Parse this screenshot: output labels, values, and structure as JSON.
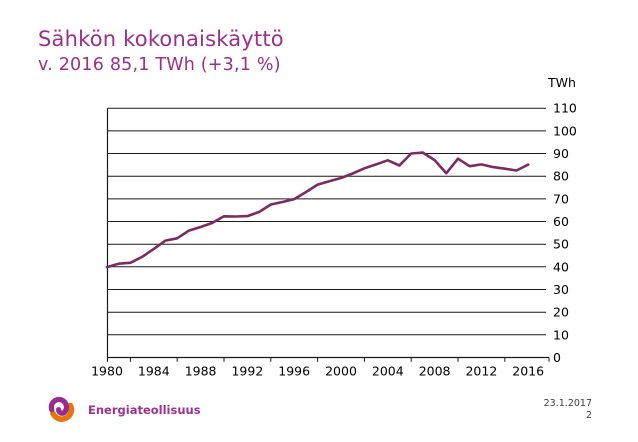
{
  "slide": {
    "title": "Sähkön kokonaiskäyttö",
    "subtitle": "v. 2016 85,1 TWh (+3,1 %)",
    "footer": {
      "logo_text": "Energiateollisuus",
      "date": "23.1.2017",
      "page": "2"
    }
  },
  "colors": {
    "title_text": "#9C3088",
    "line": "#7C2B62",
    "axis": "#1a1a1a",
    "gridline": "#1a1a1a",
    "logo_purple": "#9A2C90",
    "logo_orange": "#E8740C",
    "footer_text": "#404040"
  },
  "icons": {
    "logo": "energiateollisuus-swirl-icon"
  },
  "chart_data": {
    "type": "line",
    "title": "Sähkön kokonaiskäyttö",
    "unit_label": "TWh",
    "legend": "none",
    "grid": "horizontal",
    "y_axis_side": "right",
    "ylim": [
      0,
      110
    ],
    "y_ticks": [
      0,
      10,
      20,
      30,
      40,
      50,
      60,
      70,
      80,
      90,
      100,
      110
    ],
    "x_tick_labels": [
      "1980",
      "1984",
      "1988",
      "1992",
      "1996",
      "2000",
      "2004",
      "2008",
      "2012",
      "2016"
    ],
    "x": [
      1980,
      1981,
      1982,
      1983,
      1984,
      1985,
      1986,
      1987,
      1988,
      1989,
      1990,
      1991,
      1992,
      1993,
      1994,
      1995,
      1996,
      1997,
      1998,
      1999,
      2000,
      2001,
      2002,
      2003,
      2004,
      2005,
      2006,
      2007,
      2008,
      2009,
      2010,
      2011,
      2012,
      2013,
      2014,
      2015,
      2016
    ],
    "values": [
      39.9,
      41.4,
      41.8,
      44.4,
      47.9,
      51.6,
      52.6,
      56.0,
      57.6,
      59.4,
      62.3,
      62.2,
      62.4,
      64.2,
      67.5,
      68.6,
      69.9,
      73.0,
      76.3,
      77.8,
      79.2,
      81.2,
      83.5,
      85.2,
      87.0,
      84.7,
      90.0,
      90.4,
      87.1,
      81.3,
      87.7,
      84.4,
      85.2,
      84.0,
      83.3,
      82.5,
      85.1
    ]
  }
}
